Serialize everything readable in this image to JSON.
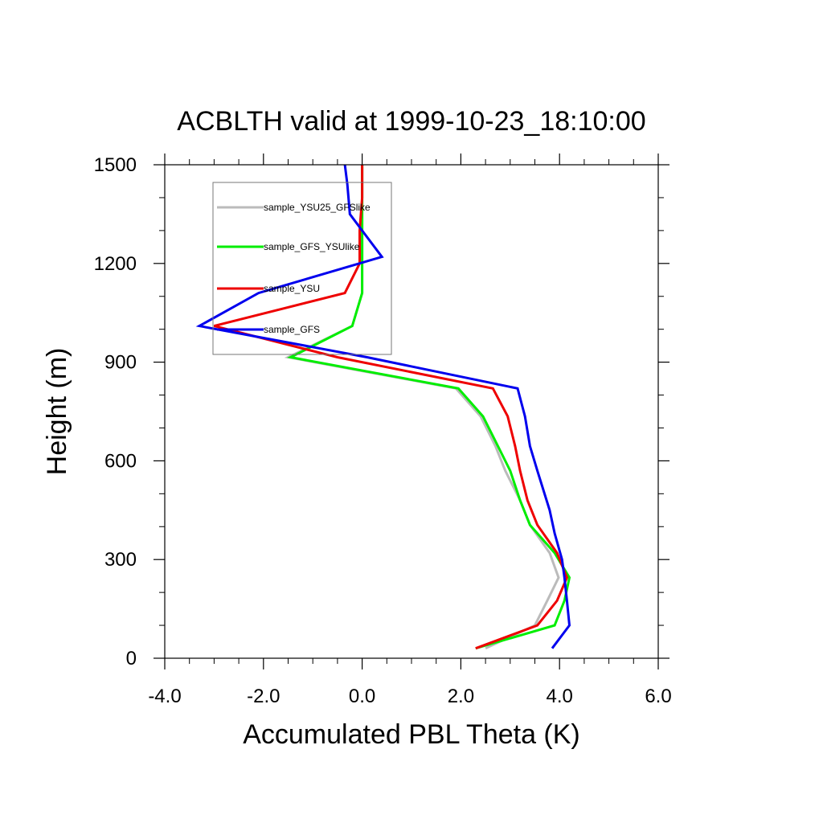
{
  "chart_data": {
    "type": "line",
    "title": "ACBLTH valid at 1999-10-23_18:10:00",
    "xlabel": "Accumulated PBL Theta (K)",
    "ylabel": "Height (m)",
    "xlim": [
      -4.0,
      6.0
    ],
    "ylim": [
      0,
      1500
    ],
    "x_ticks": [
      "-4.0",
      "-2.0",
      "0.0",
      "2.0",
      "4.0",
      "6.0"
    ],
    "x_tick_values": [
      -4,
      -2,
      0,
      2,
      4,
      6
    ],
    "y_ticks": [
      "0",
      "300",
      "600",
      "900",
      "1200",
      "1500"
    ],
    "y_tick_values": [
      0,
      300,
      600,
      900,
      1200,
      1500
    ],
    "grid": false,
    "legend_position": "top-left",
    "series": [
      {
        "name": "sample_YSU25_GFSlike",
        "color": "#bbbbbb",
        "points": [
          [
            2.5,
            30
          ],
          [
            3.5,
            100
          ],
          [
            3.75,
            175
          ],
          [
            3.98,
            245
          ],
          [
            3.8,
            320
          ],
          [
            3.4,
            405
          ],
          [
            3.2,
            480
          ],
          [
            2.9,
            570
          ],
          [
            2.7,
            645
          ],
          [
            2.4,
            735
          ],
          [
            1.9,
            820
          ],
          [
            -1.5,
            915
          ],
          [
            -0.2,
            1010
          ],
          [
            0.0,
            1110
          ],
          [
            0.0,
            1200
          ],
          [
            0.0,
            1300
          ],
          [
            0.0,
            1400
          ],
          [
            0.0,
            1500
          ]
        ]
      },
      {
        "name": "sample_GFS_YSUlike",
        "color": "#00ee00",
        "points": [
          [
            2.3,
            30
          ],
          [
            3.9,
            100
          ],
          [
            4.1,
            175
          ],
          [
            4.2,
            245
          ],
          [
            3.9,
            320
          ],
          [
            3.4,
            405
          ],
          [
            3.2,
            480
          ],
          [
            3.0,
            570
          ],
          [
            2.75,
            645
          ],
          [
            2.45,
            735
          ],
          [
            1.95,
            820
          ],
          [
            -1.45,
            915
          ],
          [
            -0.2,
            1010
          ],
          [
            0.0,
            1110
          ],
          [
            0.0,
            1200
          ],
          [
            0.0,
            1300
          ],
          [
            0.0,
            1400
          ],
          [
            0.0,
            1500
          ]
        ]
      },
      {
        "name": "sample_YSU",
        "color": "#ee0000",
        "points": [
          [
            2.3,
            30
          ],
          [
            3.55,
            100
          ],
          [
            3.95,
            175
          ],
          [
            4.15,
            245
          ],
          [
            3.95,
            320
          ],
          [
            3.55,
            405
          ],
          [
            3.35,
            480
          ],
          [
            3.2,
            570
          ],
          [
            3.1,
            645
          ],
          [
            2.95,
            735
          ],
          [
            2.65,
            820
          ],
          [
            -0.5,
            915
          ],
          [
            -3.0,
            1010
          ],
          [
            -0.35,
            1110
          ],
          [
            -0.05,
            1200
          ],
          [
            -0.05,
            1300
          ],
          [
            0.0,
            1400
          ],
          [
            0.0,
            1500
          ]
        ]
      },
      {
        "name": "sample_GFS",
        "color": "#0000ee",
        "points": [
          [
            3.85,
            30
          ],
          [
            4.2,
            100
          ],
          [
            4.15,
            175
          ],
          [
            4.1,
            245
          ],
          [
            4.05,
            300
          ],
          [
            3.9,
            380
          ],
          [
            3.8,
            450
          ],
          [
            3.55,
            570
          ],
          [
            3.4,
            645
          ],
          [
            3.3,
            735
          ],
          [
            3.15,
            820
          ],
          [
            0.1,
            915
          ],
          [
            -3.3,
            1010
          ],
          [
            -2.1,
            1110
          ],
          [
            0.4,
            1220
          ],
          [
            0.0,
            1300
          ],
          [
            -0.25,
            1350
          ],
          [
            -0.3,
            1440
          ],
          [
            -0.35,
            1500
          ]
        ]
      }
    ]
  }
}
